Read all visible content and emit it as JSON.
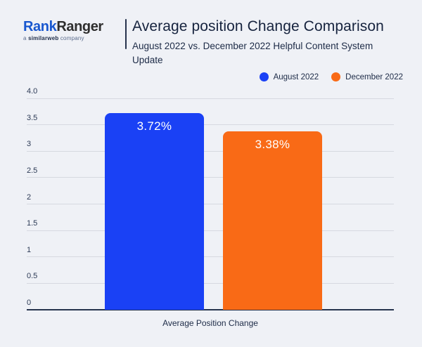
{
  "header": {
    "logo": {
      "brand_primary": "Rank",
      "brand_secondary": "Ranger",
      "tagline_prefix": "a ",
      "tagline_brand": "similarweb",
      "tagline_suffix": " company"
    },
    "title": "Average position Change Comparison",
    "subtitle": "August 2022 vs. December 2022 Helpful Content System Update"
  },
  "colors": {
    "background": "#eff1f6",
    "august_blue": "#1a41f5",
    "december_orange": "#f96a16",
    "axis_line": "#26334d",
    "gridline": "#d6d9e0",
    "text_dark": "#1d2b47",
    "logo_blue": "#1857cf",
    "logo_dark": "#2e2e2e"
  },
  "chart_data": {
    "type": "bar",
    "title": "Average position Change Comparison",
    "subtitle": "August 2022 vs. December 2022 Helpful Content System Update",
    "categories": [
      "Average Position Change"
    ],
    "series": [
      {
        "name": "August 2022",
        "values": [
          3.72
        ],
        "label": "3.72%",
        "color": "#1a41f5"
      },
      {
        "name": "December 2022",
        "values": [
          3.38
        ],
        "label": "3.38%",
        "color": "#f96a16"
      }
    ],
    "xlabel": "Average Position Change",
    "ylabel": "",
    "ylim": [
      0,
      4
    ],
    "yticks": [
      "4.0",
      "3.5",
      "3",
      "2.5",
      "2",
      "1.5",
      "1",
      "0.5",
      "0"
    ],
    "grid": true,
    "legend_position": "top-right"
  }
}
